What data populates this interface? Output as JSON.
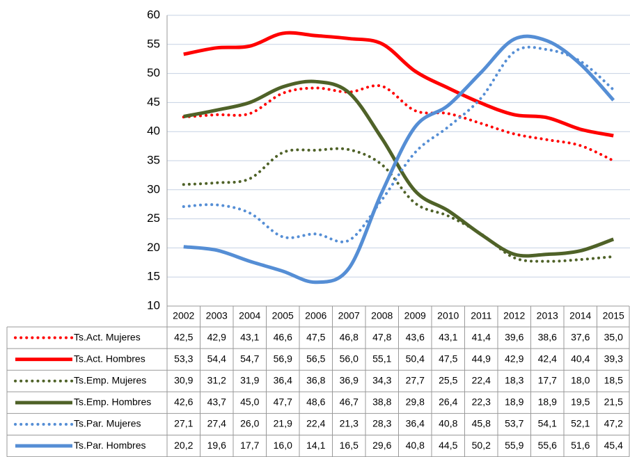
{
  "chart_data": {
    "type": "line",
    "categories": [
      "2002",
      "2003",
      "2004",
      "2005",
      "2006",
      "2007",
      "2008",
      "2009",
      "2010",
      "2011",
      "2012",
      "2013",
      "2014",
      "2015"
    ],
    "ylim": [
      10,
      60
    ],
    "yticks": [
      10,
      15,
      20,
      25,
      30,
      35,
      40,
      45,
      50,
      55,
      60
    ],
    "grid": true,
    "series": [
      {
        "name": "Ts.Act. Mujeres",
        "color": "#ff0000",
        "line_style": "dotted",
        "values": [
          42.5,
          42.9,
          43.1,
          46.6,
          47.5,
          46.8,
          47.8,
          43.6,
          43.1,
          41.4,
          39.6,
          38.6,
          37.6,
          35.0
        ],
        "value_labels": [
          "42,5",
          "42,9",
          "43,1",
          "46,6",
          "47,5",
          "46,8",
          "47,8",
          "43,6",
          "43,1",
          "41,4",
          "39,6",
          "38,6",
          "37,6",
          "35,0"
        ]
      },
      {
        "name": "Ts.Act. Hombres",
        "color": "#ff0000",
        "line_style": "solid",
        "values": [
          53.3,
          54.4,
          54.7,
          56.9,
          56.5,
          56.0,
          55.1,
          50.4,
          47.5,
          44.9,
          42.9,
          42.4,
          40.4,
          39.3
        ],
        "value_labels": [
          "53,3",
          "54,4",
          "54,7",
          "56,9",
          "56,5",
          "56,0",
          "55,1",
          "50,4",
          "47,5",
          "44,9",
          "42,9",
          "42,4",
          "40,4",
          "39,3"
        ]
      },
      {
        "name": "Ts.Emp. Mujeres",
        "color": "#4f6228",
        "line_style": "dotted",
        "values": [
          30.9,
          31.2,
          31.9,
          36.4,
          36.8,
          36.9,
          34.3,
          27.7,
          25.5,
          22.4,
          18.3,
          17.7,
          18.0,
          18.5
        ],
        "value_labels": [
          "30,9",
          "31,2",
          "31,9",
          "36,4",
          "36,8",
          "36,9",
          "34,3",
          "27,7",
          "25,5",
          "22,4",
          "18,3",
          "17,7",
          "18,0",
          "18,5"
        ]
      },
      {
        "name": "Ts.Emp. Hombres",
        "color": "#4f6228",
        "line_style": "solid",
        "values": [
          42.6,
          43.7,
          45.0,
          47.7,
          48.6,
          46.7,
          38.8,
          29.8,
          26.4,
          22.3,
          18.9,
          18.9,
          19.5,
          21.5
        ],
        "value_labels": [
          "42,6",
          "43,7",
          "45,0",
          "47,7",
          "48,6",
          "46,7",
          "38,8",
          "29,8",
          "26,4",
          "22,3",
          "18,9",
          "18,9",
          "19,5",
          "21,5"
        ]
      },
      {
        "name": "Ts.Par. Mujeres",
        "color": "#558ed5",
        "line_style": "dotted",
        "values": [
          27.1,
          27.4,
          26.0,
          21.9,
          22.4,
          21.3,
          28.3,
          36.4,
          40.8,
          45.8,
          53.7,
          54.1,
          52.1,
          47.2
        ],
        "value_labels": [
          "27,1",
          "27,4",
          "26,0",
          "21,9",
          "22,4",
          "21,3",
          "28,3",
          "36,4",
          "40,8",
          "45,8",
          "53,7",
          "54,1",
          "52,1",
          "47,2"
        ]
      },
      {
        "name": "Ts.Par. Hombres",
        "color": "#558ed5",
        "line_style": "solid",
        "values": [
          20.2,
          19.6,
          17.7,
          16.0,
          14.1,
          16.5,
          29.6,
          40.8,
          44.5,
          50.2,
          55.9,
          55.6,
          51.6,
          45.4
        ],
        "value_labels": [
          "20,2",
          "19,6",
          "17,7",
          "16,0",
          "14,1",
          "16,5",
          "29,6",
          "40,8",
          "44,5",
          "50,2",
          "55,9",
          "55,6",
          "51,6",
          "45,4"
        ]
      }
    ]
  }
}
